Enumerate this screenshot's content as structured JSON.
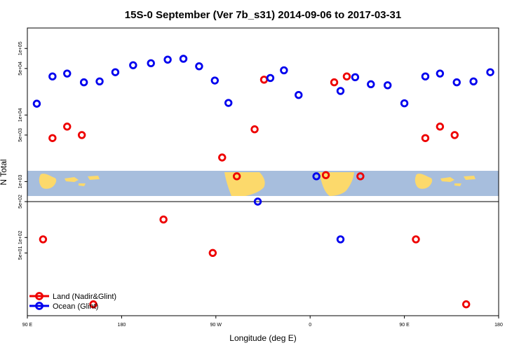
{
  "chart_data": {
    "type": "scatter",
    "title": "15S-0 September (Ver 7b_s31)   2014-09-06 to 2017-03-31",
    "xlabel": "Longitude (deg E)",
    "ylabel": "N Total",
    "x_ticks": [
      {
        "value": 90,
        "label": "90 E"
      },
      {
        "value": 180,
        "label": "180"
      },
      {
        "value": 270,
        "label": "90 W"
      },
      {
        "value": 360,
        "label": "0"
      },
      {
        "value": 450,
        "label": "90 E"
      },
      {
        "value": 540,
        "label": "180"
      }
    ],
    "xlim": [
      90,
      540
    ],
    "upper_panel": {
      "scale": "log",
      "ylim": [
        500,
        150000
      ],
      "y_ticks": [
        {
          "value": 500,
          "label": "5e+02"
        },
        {
          "value": 1000,
          "label": "1e+03"
        },
        {
          "value": 5000,
          "label": "5e+03"
        },
        {
          "value": 10000,
          "label": "1e+04"
        },
        {
          "value": 50000,
          "label": "5e+04"
        },
        {
          "value": 100000,
          "label": "1e+05"
        }
      ]
    },
    "lower_panel": {
      "scale": "log",
      "ylim": [
        3,
        500
      ],
      "y_ticks": [
        {
          "value": 50,
          "label": "5e+01"
        },
        {
          "value": 100,
          "label": "1e+02"
        }
      ]
    },
    "series": [
      {
        "name": "Land (Nadir&Glint)",
        "color": "#ee0000",
        "points": [
          {
            "x": 114,
            "y": 4500,
            "panel": "upper"
          },
          {
            "x": 128,
            "y": 6700,
            "panel": "upper"
          },
          {
            "x": 142,
            "y": 5000,
            "panel": "upper"
          },
          {
            "x": 276,
            "y": 2300,
            "panel": "upper"
          },
          {
            "x": 290,
            "y": 1200,
            "panel": "upper"
          },
          {
            "x": 307,
            "y": 6100,
            "panel": "upper"
          },
          {
            "x": 316,
            "y": 34000,
            "panel": "upper"
          },
          {
            "x": 375,
            "y": 1250,
            "panel": "upper"
          },
          {
            "x": 383,
            "y": 31000,
            "panel": "upper"
          },
          {
            "x": 395,
            "y": 38000,
            "panel": "upper"
          },
          {
            "x": 408,
            "y": 1200,
            "panel": "upper"
          },
          {
            "x": 470,
            "y": 4500,
            "panel": "upper"
          },
          {
            "x": 484,
            "y": 6700,
            "panel": "upper"
          },
          {
            "x": 498,
            "y": 5000,
            "panel": "upper"
          },
          {
            "x": 105,
            "y": 92,
            "panel": "lower"
          },
          {
            "x": 153,
            "y": 5,
            "panel": "lower"
          },
          {
            "x": 220,
            "y": 224,
            "panel": "lower"
          },
          {
            "x": 267,
            "y": 50,
            "panel": "lower"
          },
          {
            "x": 461,
            "y": 92,
            "panel": "lower"
          },
          {
            "x": 509,
            "y": 5,
            "panel": "lower"
          }
        ]
      },
      {
        "name": "Ocean (Glint)",
        "color": "#0000ee",
        "points": [
          {
            "x": 99,
            "y": 14800,
            "panel": "upper"
          },
          {
            "x": 114,
            "y": 38000,
            "panel": "upper"
          },
          {
            "x": 128,
            "y": 42000,
            "panel": "upper"
          },
          {
            "x": 144,
            "y": 31000,
            "panel": "upper"
          },
          {
            "x": 159,
            "y": 32000,
            "panel": "upper"
          },
          {
            "x": 174,
            "y": 44000,
            "panel": "upper"
          },
          {
            "x": 191,
            "y": 56000,
            "panel": "upper"
          },
          {
            "x": 208,
            "y": 60000,
            "panel": "upper"
          },
          {
            "x": 224,
            "y": 68000,
            "panel": "upper"
          },
          {
            "x": 239,
            "y": 70000,
            "panel": "upper"
          },
          {
            "x": 254,
            "y": 54000,
            "panel": "upper"
          },
          {
            "x": 269,
            "y": 33000,
            "panel": "upper"
          },
          {
            "x": 282,
            "y": 15200,
            "panel": "upper"
          },
          {
            "x": 310,
            "y": 500,
            "panel": "upper"
          },
          {
            "x": 322,
            "y": 36000,
            "panel": "upper"
          },
          {
            "x": 335,
            "y": 47000,
            "panel": "upper"
          },
          {
            "x": 349,
            "y": 20000,
            "panel": "upper"
          },
          {
            "x": 366,
            "y": 1200,
            "panel": "upper"
          },
          {
            "x": 389,
            "y": 23000,
            "panel": "upper"
          },
          {
            "x": 403,
            "y": 37000,
            "panel": "upper"
          },
          {
            "x": 418,
            "y": 29000,
            "panel": "upper"
          },
          {
            "x": 434,
            "y": 28000,
            "panel": "upper"
          },
          {
            "x": 450,
            "y": 15000,
            "panel": "upper"
          },
          {
            "x": 470,
            "y": 38000,
            "panel": "upper"
          },
          {
            "x": 484,
            "y": 42000,
            "panel": "upper"
          },
          {
            "x": 500,
            "y": 31000,
            "panel": "upper"
          },
          {
            "x": 516,
            "y": 32000,
            "panel": "upper"
          },
          {
            "x": 532,
            "y": 44000,
            "panel": "upper"
          },
          {
            "x": 389,
            "y": 92,
            "panel": "lower"
          }
        ]
      }
    ],
    "legend": {
      "placement": "bottom-left"
    },
    "grid": false
  }
}
